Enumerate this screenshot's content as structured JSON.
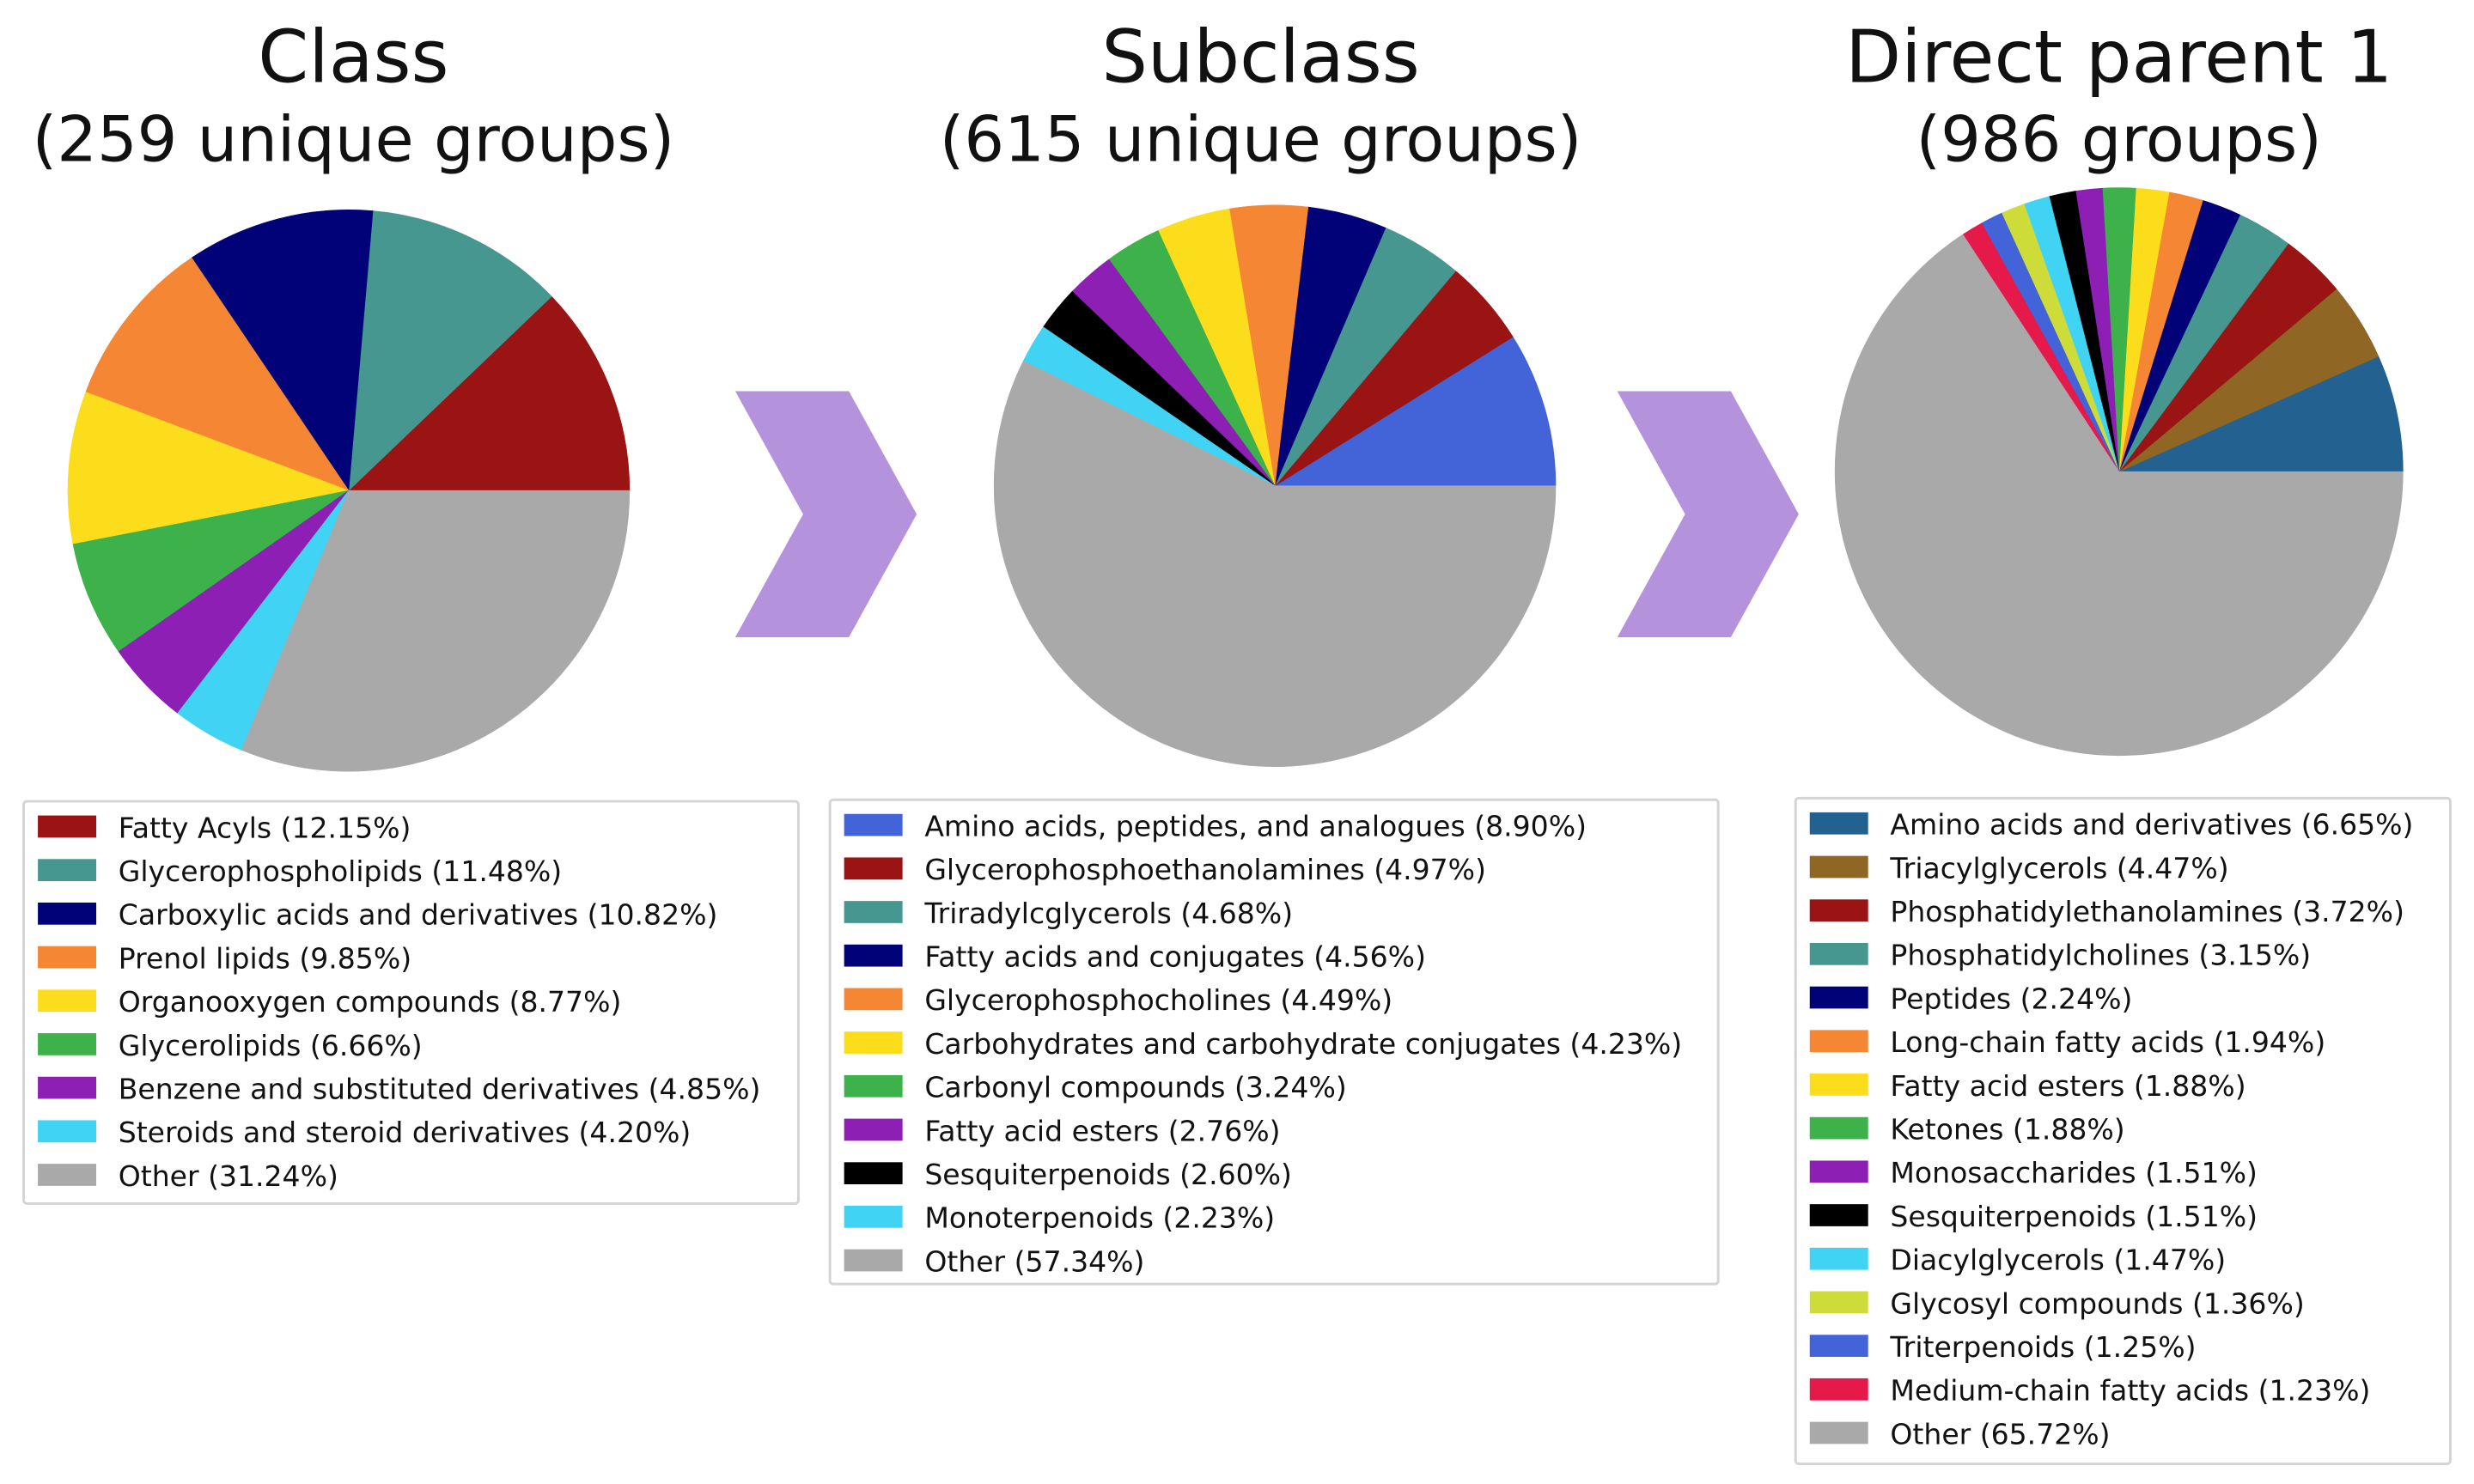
{
  "chart_data": [
    {
      "type": "pie",
      "title": "Class",
      "subtitle": "(259 unique groups)",
      "slices": [
        {
          "label": "Fatty Acyls (12.15%)",
          "value": 12.15,
          "color": "#9b1414"
        },
        {
          "label": "Glycerophospholipids (11.48%)",
          "value": 11.48,
          "color": "#45978f"
        },
        {
          "label": "Carboxylic acids and derivatives (10.82%)",
          "value": 10.82,
          "color": "#020278"
        },
        {
          "label": "Prenol lipids (9.85%)",
          "value": 9.85,
          "color": "#f58634"
        },
        {
          "label": "Organooxygen compounds (8.77%)",
          "value": 8.77,
          "color": "#fcdd1c"
        },
        {
          "label": "Glycerolipids (6.66%)",
          "value": 6.66,
          "color": "#3db24a"
        },
        {
          "label": "Benzene and substituted derivatives (4.85%)",
          "value": 4.85,
          "color": "#8d1fb4"
        },
        {
          "label": "Steroids and steroid derivatives (4.20%)",
          "value": 4.2,
          "color": "#40d3f4"
        },
        {
          "label": "Other (31.24%)",
          "value": 31.24,
          "color": "#a9a9a9"
        }
      ]
    },
    {
      "type": "pie",
      "title": "Subclass",
      "subtitle": "(615 unique groups)",
      "slices": [
        {
          "label": "Amino acids, peptides, and analogues (8.90%)",
          "value": 8.9,
          "color": "#4363d8"
        },
        {
          "label": "Glycerophosphoethanolamines (4.97%)",
          "value": 4.97,
          "color": "#9b1414"
        },
        {
          "label": "Triradylcglycerols (4.68%)",
          "value": 4.68,
          "color": "#45978f"
        },
        {
          "label": "Fatty acids and conjugates (4.56%)",
          "value": 4.56,
          "color": "#020278"
        },
        {
          "label": "Glycerophosphocholines (4.49%)",
          "value": 4.49,
          "color": "#f58634"
        },
        {
          "label": "Carbohydrates and carbohydrate conjugates (4.23%)",
          "value": 4.23,
          "color": "#fcdd1c"
        },
        {
          "label": "Carbonyl compounds (3.24%)",
          "value": 3.24,
          "color": "#3db24a"
        },
        {
          "label": "Fatty acid esters (2.76%)",
          "value": 2.76,
          "color": "#8d1fb4"
        },
        {
          "label": "Sesquiterpenoids (2.60%)",
          "value": 2.6,
          "color": "#000000"
        },
        {
          "label": "Monoterpenoids (2.23%)",
          "value": 2.23,
          "color": "#40d3f4"
        },
        {
          "label": "Other (57.34%)",
          "value": 57.34,
          "color": "#a9a9a9"
        }
      ]
    },
    {
      "type": "pie",
      "title": "Direct parent 1",
      "subtitle": "(986 groups)",
      "slices": [
        {
          "label": "Amino acids and derivatives (6.65%)",
          "value": 6.65,
          "color": "#236190"
        },
        {
          "label": "Triacylglycerols (4.47%)",
          "value": 4.47,
          "color": "#8f6623"
        },
        {
          "label": "Phosphatidylethanolamines (3.72%)",
          "value": 3.72,
          "color": "#9b1414"
        },
        {
          "label": "Phosphatidylcholines (3.15%)",
          "value": 3.15,
          "color": "#45978f"
        },
        {
          "label": "Peptides (2.24%)",
          "value": 2.24,
          "color": "#020278"
        },
        {
          "label": "Long-chain fatty acids (1.94%)",
          "value": 1.94,
          "color": "#f58634"
        },
        {
          "label": "Fatty acid esters (1.88%)",
          "value": 1.88,
          "color": "#fcdd1c"
        },
        {
          "label": "Ketones (1.88%)",
          "value": 1.88,
          "color": "#3db24a"
        },
        {
          "label": "Monosaccharides (1.51%)",
          "value": 1.51,
          "color": "#8d1fb4"
        },
        {
          "label": "Sesquiterpenoids (1.51%)",
          "value": 1.51,
          "color": "#000000"
        },
        {
          "label": "Diacylglycerols (1.47%)",
          "value": 1.47,
          "color": "#40d3f4"
        },
        {
          "label": "Glycosyl compounds (1.36%)",
          "value": 1.36,
          "color": "#cddc39"
        },
        {
          "label": "Triterpenoids (1.25%)",
          "value": 1.25,
          "color": "#4363d8"
        },
        {
          "label": "Medium-chain fatty acids (1.23%)",
          "value": 1.23,
          "color": "#e6194b"
        },
        {
          "label": "Other (65.72%)",
          "value": 65.72,
          "color": "#a9a9a9"
        }
      ]
    }
  ],
  "arrow_color": "#b592dc"
}
